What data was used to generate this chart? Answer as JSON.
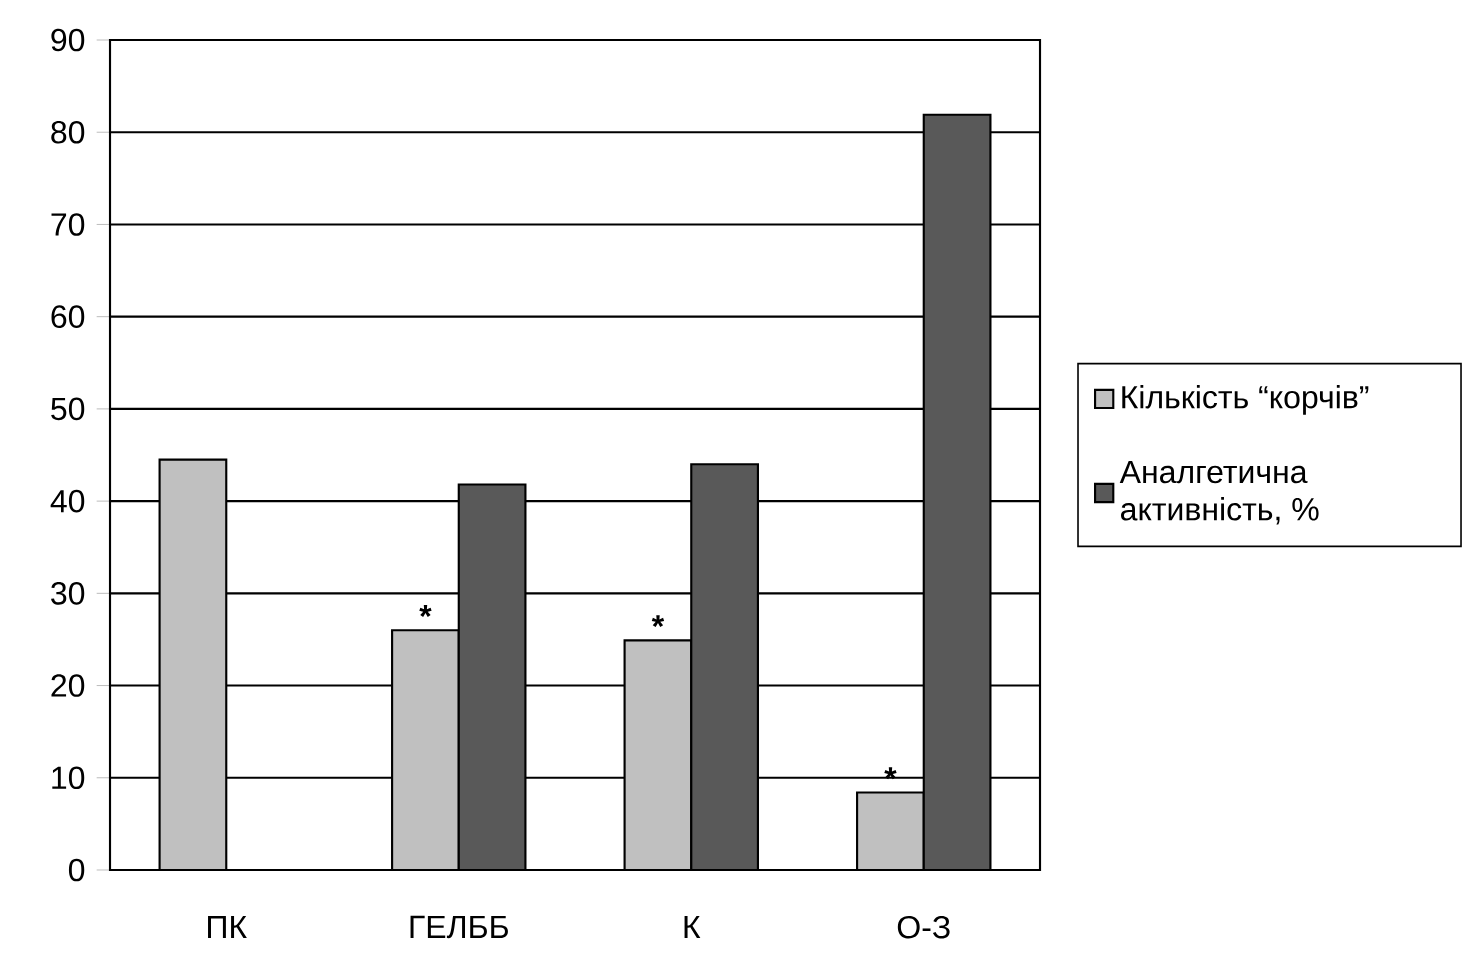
{
  "chart_data": {
    "type": "bar",
    "categories": [
      "ПК",
      "ГЕЛББ",
      "К",
      "О-З"
    ],
    "series": [
      {
        "name": "Кількість “корчів”",
        "color": "#c0c0c0",
        "values": [
          44.5,
          26.0,
          24.9,
          8.4
        ]
      },
      {
        "name": "Аналгетична активність, %",
        "color": "#595959",
        "values": [
          null,
          41.8,
          44.0,
          81.9
        ]
      }
    ],
    "ylim": [
      0,
      90
    ],
    "yticks": [
      0,
      10,
      20,
      30,
      40,
      50,
      60,
      70,
      80,
      90
    ],
    "grid": "y",
    "legend": "right",
    "annotations": [
      {
        "text": "*",
        "x": "ГЕЛББ",
        "y": 26.0
      },
      {
        "text": "*",
        "x": "К",
        "y": 24.9
      },
      {
        "text": "*",
        "x": "О-З",
        "y": 8.4
      }
    ]
  }
}
